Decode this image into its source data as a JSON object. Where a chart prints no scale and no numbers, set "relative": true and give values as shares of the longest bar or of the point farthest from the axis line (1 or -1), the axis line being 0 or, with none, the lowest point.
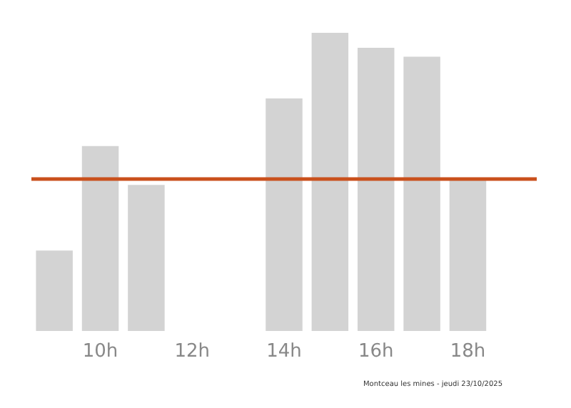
{
  "chart_data": {
    "type": "bar",
    "relative": true,
    "categories": [
      null,
      "10h",
      null,
      "12h",
      null,
      "14h",
      null,
      "16h",
      null,
      "18h",
      null
    ],
    "values": [
      0.27,
      0.62,
      0.49,
      0,
      0,
      0.78,
      1,
      0.95,
      0.92,
      0.51,
      0
    ],
    "color": "#d3d3d3",
    "ref_lines": [
      {
        "axis": "y",
        "value": 0.51,
        "color": "#c9501c",
        "line_style": "solid"
      }
    ],
    "annotations": [
      "Montceau les mines - jeudi 23/10/2025"
    ],
    "grid": false
  }
}
